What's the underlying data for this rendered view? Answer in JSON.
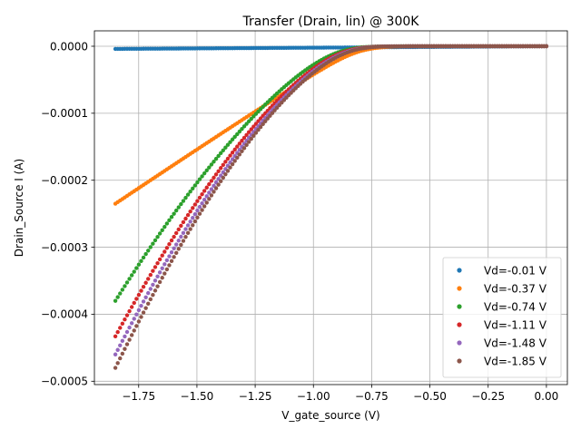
{
  "chart_data": {
    "type": "scatter",
    "title": "Transfer (Drain, lin) @ 300K",
    "xlabel": "V_gate_source (V)",
    "ylabel": "Drain_Source I (A)",
    "xlim": [
      -1.94,
      0.09
    ],
    "ylim": [
      -0.000505,
      2.3e-05
    ],
    "xticks": [
      -1.75,
      -1.5,
      -1.25,
      -1.0,
      -0.75,
      -0.5,
      -0.25,
      0.0
    ],
    "xtick_labels": [
      "−1.75",
      "−1.50",
      "−1.25",
      "−1.00",
      "−0.75",
      "−0.50",
      "−0.25",
      "0.00"
    ],
    "yticks": [
      0.0,
      -0.0001,
      -0.0002,
      -0.0003,
      -0.0004,
      -0.0005
    ],
    "ytick_labels": [
      "0.0000",
      "−0.0001",
      "−0.0002",
      "−0.0003",
      "−0.0004",
      "−0.0005"
    ],
    "grid": true,
    "legend_position": "bottom-right",
    "x_range": [
      -1.85,
      0.0
    ],
    "n_points": 185,
    "series": [
      {
        "name": "Vd=-0.01 V",
        "color": "#1f77b4",
        "model": {
          "kind": "flat",
          "start": -4e-06,
          "end": 0.0
        }
      },
      {
        "name": "Vd=-0.37 V",
        "color": "#ff7f0e",
        "model": {
          "kind": "transfer",
          "ymin": -0.000235,
          "vt": -0.8,
          "exp": 1.04,
          "vs": 0.055
        }
      },
      {
        "name": "Vd=-0.74 V",
        "color": "#2ca02c",
        "model": {
          "kind": "transfer",
          "ymin": -0.00038,
          "vt": -0.83,
          "exp": 1.48,
          "vs": 0.06
        }
      },
      {
        "name": "Vd=-1.11 V",
        "color": "#d62728",
        "model": {
          "kind": "transfer",
          "ymin": -0.000433,
          "vt": -0.81,
          "exp": 1.52,
          "vs": 0.06
        }
      },
      {
        "name": "Vd=-1.48 V",
        "color": "#9467bd",
        "model": {
          "kind": "transfer",
          "ymin": -0.00046,
          "vt": -0.795,
          "exp": 1.55,
          "vs": 0.06
        }
      },
      {
        "name": "Vd=-1.85 V",
        "color": "#8c564b",
        "model": {
          "kind": "transfer",
          "ymin": -0.00048,
          "vt": -0.785,
          "exp": 1.57,
          "vs": 0.06
        }
      }
    ]
  }
}
